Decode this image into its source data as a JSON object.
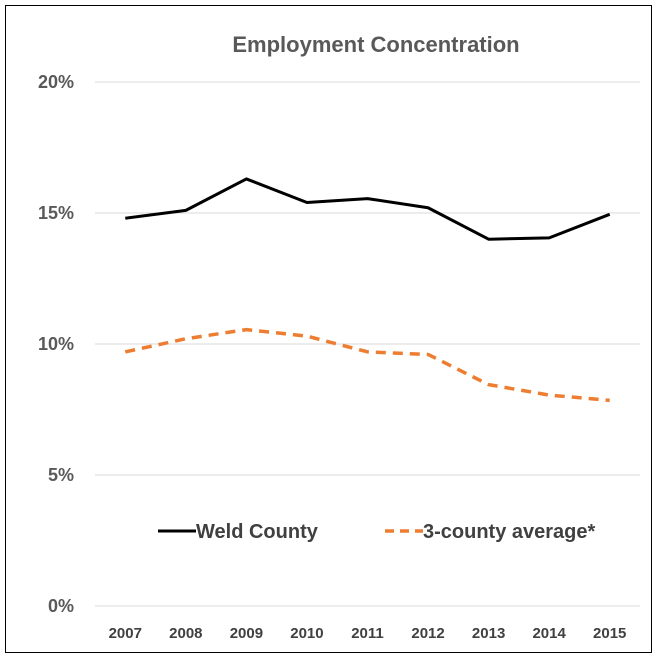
{
  "chart_data": {
    "type": "line",
    "title": "Employment Concentration",
    "x": [
      "2007",
      "2008",
      "2009",
      "2010",
      "2011",
      "2012",
      "2013",
      "2014",
      "2015"
    ],
    "ylim": [
      0,
      20
    ],
    "yticks": [
      "0%",
      "5%",
      "10%",
      "15%",
      "20%"
    ],
    "grid": true,
    "legend_position": "inside-bottom",
    "series": [
      {
        "name": "Weld County",
        "values": [
          14.8,
          15.1,
          16.3,
          15.4,
          15.55,
          15.2,
          14.0,
          14.05,
          14.95
        ],
        "color": "#000000",
        "dash": "solid"
      },
      {
        "name": "3-county average*",
        "values": [
          9.7,
          10.2,
          10.55,
          10.3,
          9.7,
          9.6,
          8.45,
          8.05,
          7.85
        ],
        "color": "#ed7d31",
        "dash": "dashed"
      }
    ]
  }
}
